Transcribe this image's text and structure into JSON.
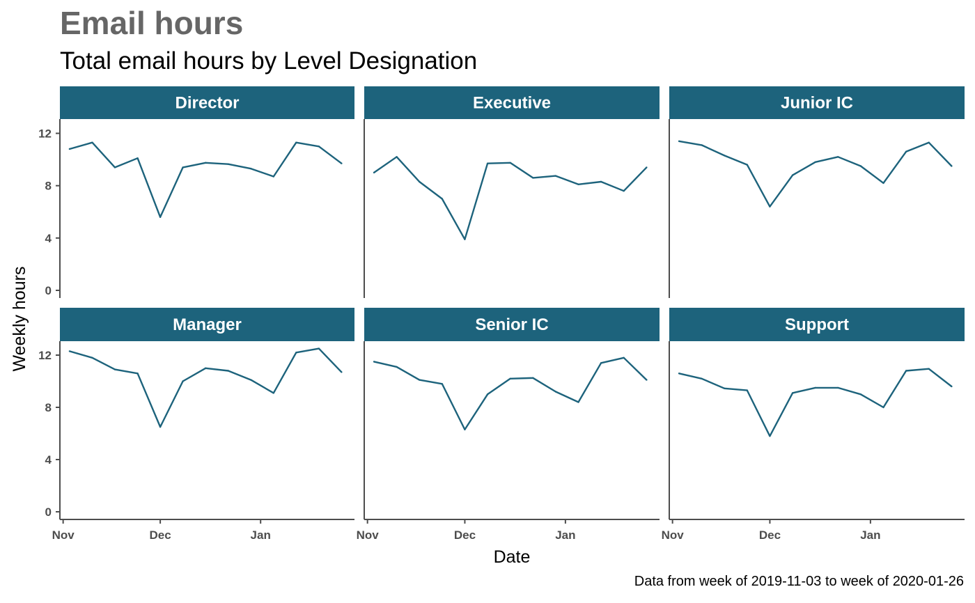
{
  "header": {
    "title": "Email hours",
    "subtitle": "Total email hours by Level Designation",
    "caption": "Data from week of 2019-11-03 to week of 2020-01-26"
  },
  "colors": {
    "line": "#1d637c",
    "strip": "#1d637c",
    "axis": "#4d4d4d"
  },
  "chart_data": {
    "type": "line",
    "facet_by": "Level Designation",
    "xlabel": "Date",
    "ylabel": "Weekly hours",
    "ylim": [
      0,
      13
    ],
    "yticks": [
      0,
      4,
      8,
      12
    ],
    "xlim": [
      "2019-10-31",
      "2020-01-30"
    ],
    "xticks": [
      {
        "value": "2019-11-01",
        "label": "Nov"
      },
      {
        "value": "2019-12-01",
        "label": "Dec"
      },
      {
        "value": "2020-01-01",
        "label": "Jan"
      }
    ],
    "grid": false,
    "x": [
      "2019-11-03",
      "2019-11-10",
      "2019-11-17",
      "2019-11-24",
      "2019-12-01",
      "2019-12-08",
      "2019-12-15",
      "2019-12-22",
      "2019-12-29",
      "2020-01-05",
      "2020-01-12",
      "2020-01-19",
      "2020-01-26"
    ],
    "panels": [
      {
        "name": "Director",
        "values": [
          10.8,
          11.3,
          9.4,
          10.1,
          5.6,
          9.4,
          9.75,
          9.65,
          9.3,
          8.7,
          11.3,
          11.0,
          9.7
        ]
      },
      {
        "name": "Executive",
        "values": [
          9.0,
          10.2,
          8.3,
          7.0,
          3.9,
          9.7,
          9.75,
          8.6,
          8.75,
          8.1,
          8.3,
          7.6,
          9.4
        ]
      },
      {
        "name": "Junior IC",
        "values": [
          11.4,
          11.1,
          10.3,
          9.6,
          6.4,
          8.8,
          9.8,
          10.2,
          9.5,
          8.2,
          10.6,
          11.3,
          9.5
        ]
      },
      {
        "name": "Manager",
        "values": [
          12.3,
          11.8,
          10.9,
          10.6,
          6.5,
          10.0,
          11.0,
          10.8,
          10.1,
          9.1,
          12.2,
          12.5,
          10.7
        ]
      },
      {
        "name": "Senior IC",
        "values": [
          11.5,
          11.1,
          10.1,
          9.8,
          6.3,
          9.0,
          10.2,
          10.25,
          9.2,
          8.4,
          11.4,
          11.8,
          10.1
        ]
      },
      {
        "name": "Support",
        "values": [
          10.6,
          10.2,
          9.45,
          9.3,
          5.8,
          9.1,
          9.5,
          9.5,
          9.0,
          8.0,
          10.8,
          10.95,
          9.6
        ]
      }
    ]
  }
}
